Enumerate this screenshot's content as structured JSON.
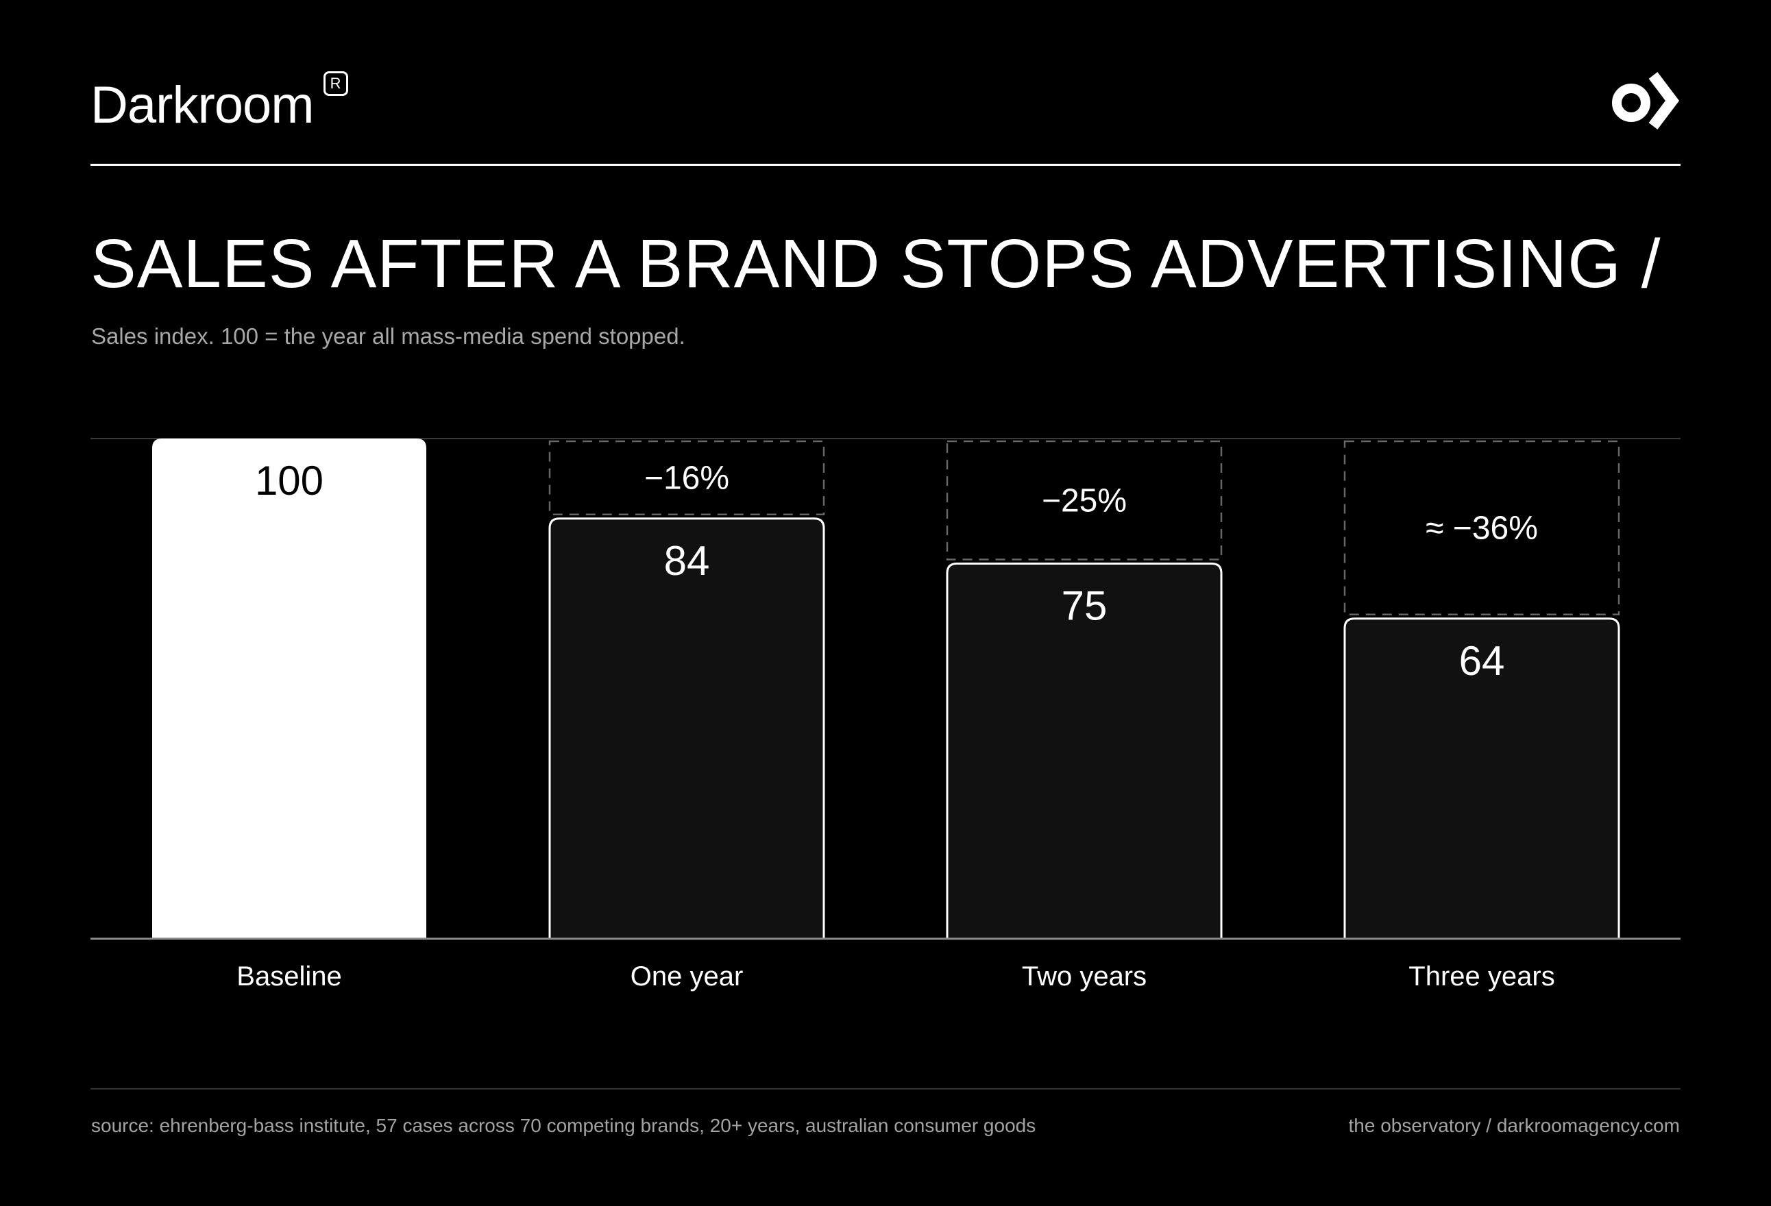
{
  "brand": {
    "name": "Darkroom",
    "registered_mark": "R"
  },
  "header": {
    "title": "SALES AFTER A BRAND STOPS ADVERTISING /",
    "subtitle": "Sales index. 100 = the year all mass-media spend stopped."
  },
  "colors": {
    "background": "#000000",
    "baseline_bar": "#ffffff",
    "decline_bar": "#111111",
    "bar_outline": "#ffffff",
    "loss_outline": "#666666",
    "muted_text": "#a8a8a8"
  },
  "chart_data": {
    "type": "bar",
    "categories": [
      "Baseline",
      "One year",
      "Two years",
      "Three years"
    ],
    "values": [
      100,
      84,
      75,
      64
    ],
    "value_labels": [
      "100",
      "84",
      "75",
      "64"
    ],
    "change_labels": [
      "",
      "−16%",
      "−25%",
      "≈ −36%"
    ],
    "ylim": [
      0,
      100
    ],
    "grid": false,
    "legend": "none"
  },
  "footer": {
    "source": "source: ehrenberg-bass institute, 57 cases across 70 competing brands, 20+ years, australian consumer goods",
    "credit": "the observatory / darkroomagency.com"
  }
}
